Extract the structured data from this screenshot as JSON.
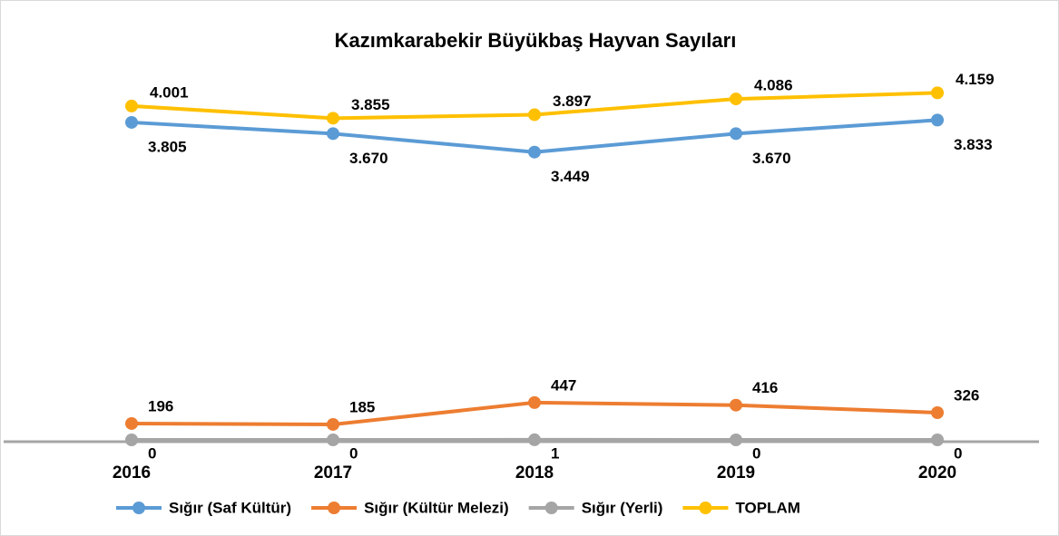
{
  "chart_data": {
    "type": "line",
    "title": "Kazımkarabekir Büyükbaş Hayvan Sayıları",
    "categories": [
      "2016",
      "2017",
      "2018",
      "2019",
      "2020"
    ],
    "ylim": [
      0,
      4500
    ],
    "series": [
      {
        "name": "Sığır (Saf Kültür)",
        "color": "#5b9bd5",
        "values": [
          3805,
          3670,
          3449,
          3670,
          3833
        ],
        "value_labels": [
          "3.805",
          "3.670",
          "3.449",
          "3.670",
          "3.833"
        ]
      },
      {
        "name": "Sığır (Kültür Melezi)",
        "color": "#ed7d31",
        "values": [
          196,
          185,
          447,
          416,
          326
        ]
      },
      {
        "name": "Sığır (Yerli)",
        "color": "#a5a5a5",
        "values": [
          0,
          0,
          1,
          0,
          0
        ]
      },
      {
        "name": "TOPLAM",
        "color": "#ffc000",
        "values": [
          4001,
          3855,
          3897,
          4086,
          4159
        ],
        "value_labels": [
          "4.001",
          "3.855",
          "3.897",
          "4.086",
          "4.159"
        ]
      }
    ],
    "legend": "bottom"
  }
}
